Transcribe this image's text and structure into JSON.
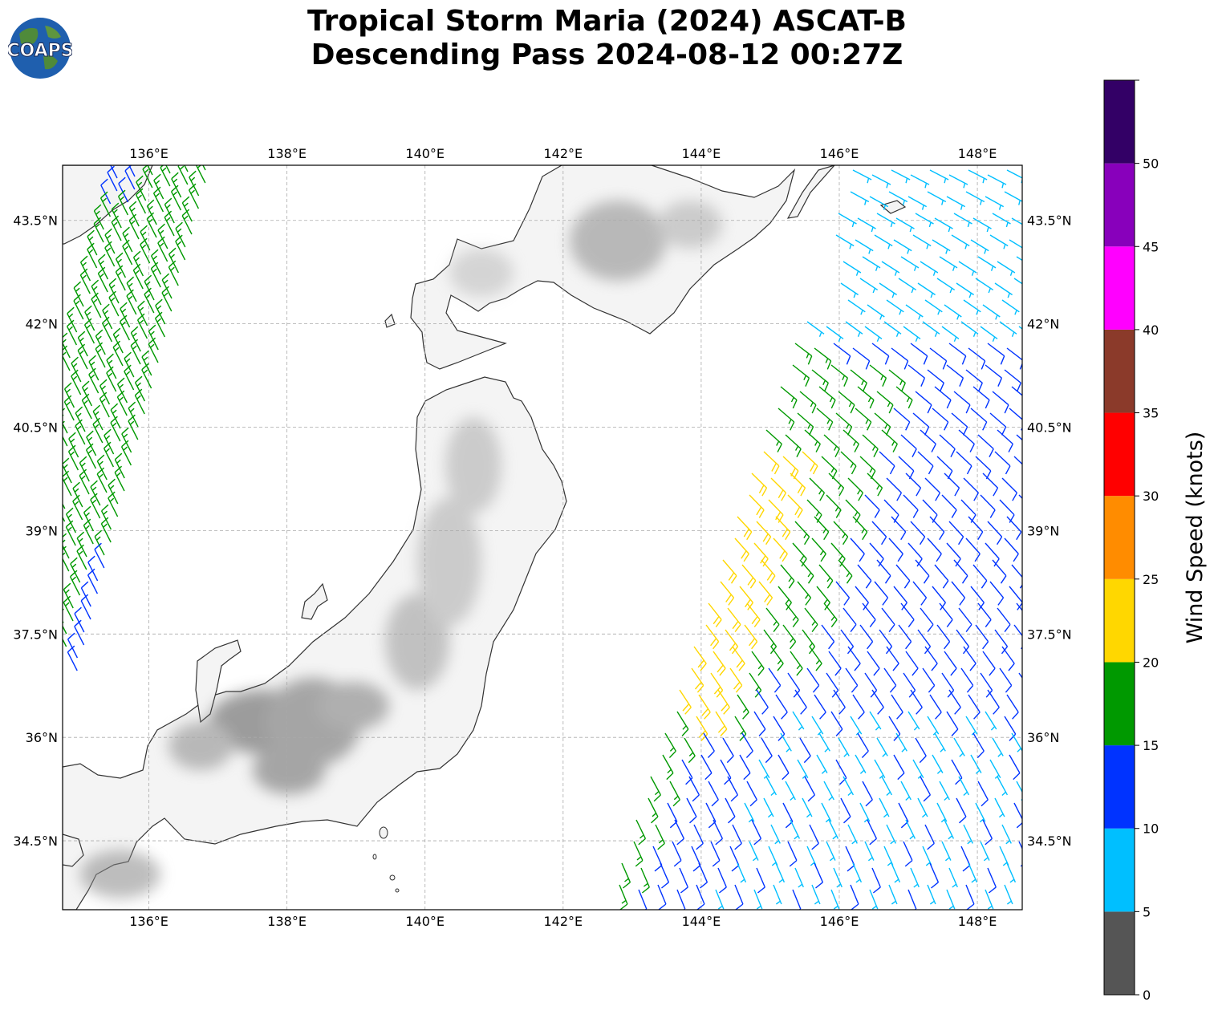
{
  "title": {
    "line1": "Tropical Storm Maria (2024) ASCAT-B",
    "line2": "Descending Pass 2024-08-12 00:27Z"
  },
  "logo": {
    "text": "COAPS"
  },
  "map": {
    "lon_range": [
      134.75,
      148.65
    ],
    "lat_range": [
      33.5,
      44.3
    ],
    "lon_ticks": [
      {
        "value": 136,
        "label": "136°E"
      },
      {
        "value": 138,
        "label": "138°E"
      },
      {
        "value": 140,
        "label": "140°E"
      },
      {
        "value": 142,
        "label": "142°E"
      },
      {
        "value": 144,
        "label": "144°E"
      },
      {
        "value": 146,
        "label": "146°E"
      },
      {
        "value": 148,
        "label": "148°E"
      }
    ],
    "lat_ticks": [
      {
        "value": 34.5,
        "label": "34.5°N"
      },
      {
        "value": 36,
        "label": "36°N"
      },
      {
        "value": 37.5,
        "label": "37.5°N"
      },
      {
        "value": 39,
        "label": "39°N"
      },
      {
        "value": 40.5,
        "label": "40.5°N"
      },
      {
        "value": 42,
        "label": "42°N"
      },
      {
        "value": 43.5,
        "label": "43.5°N"
      }
    ],
    "gridlines": true
  },
  "colorbar": {
    "label": "Wind Speed (knots)",
    "tick_labels": [
      "0",
      "5",
      "10",
      "15",
      "20",
      "25",
      "30",
      "35",
      "40",
      "45",
      "50"
    ],
    "bins": [
      {
        "from": 0,
        "to": 5,
        "color": "#555555"
      },
      {
        "from": 5,
        "to": 10,
        "color": "#00bfff"
      },
      {
        "from": 10,
        "to": 15,
        "color": "#0033ff"
      },
      {
        "from": 15,
        "to": 20,
        "color": "#009900"
      },
      {
        "from": 20,
        "to": 25,
        "color": "#ffd700"
      },
      {
        "from": 25,
        "to": 30,
        "color": "#ff8c00"
      },
      {
        "from": 30,
        "to": 35,
        "color": "#ff0000"
      },
      {
        "from": 35,
        "to": 40,
        "color": "#8b3a2a"
      },
      {
        "from": 40,
        "to": 45,
        "color": "#ff00ff"
      },
      {
        "from": 45,
        "to": 50,
        "color": "#8800bb"
      },
      {
        "from": 50,
        "to": 55,
        "color": "#330066"
      }
    ]
  }
}
